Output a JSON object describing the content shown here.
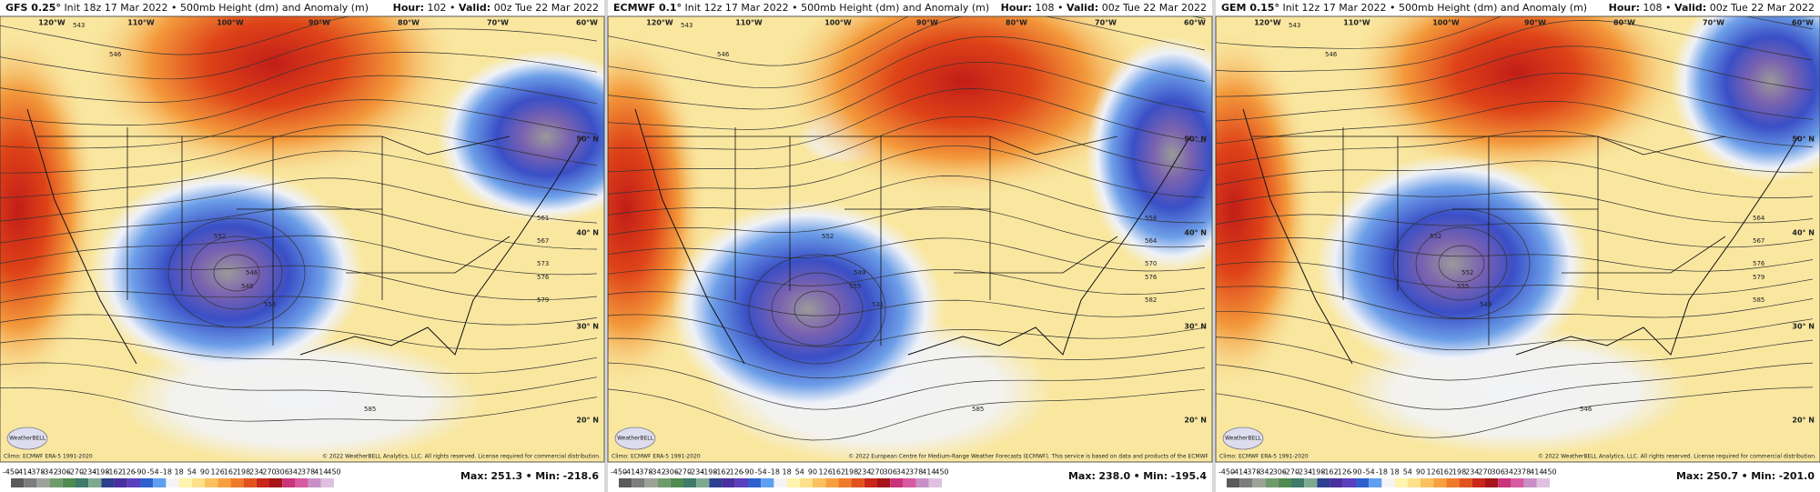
{
  "panels": [
    {
      "model": "GFS 0.25°",
      "subtitle": "Init 18z 17 Mar 2022 • 500mb Height (dm) and Anomaly (m)",
      "hour": "102",
      "valid": "00z Tue 22 Mar 2022",
      "max": "251.3",
      "min": "-218.6",
      "copyright": "© 2022 WeatherBELL Analytics, LLC. All rights reserved. License required for commercial distribution.",
      "contours": [
        543,
        546,
        552,
        561,
        567,
        573,
        576,
        579,
        585,
        546,
        549,
        555
      ]
    },
    {
      "model": "ECMWF 0.1°",
      "subtitle": "Init 12z 17 Mar 2022 • 500mb Height (dm) and Anomaly (m)",
      "hour": "108",
      "valid": "00z Tue 22 Mar 2022",
      "max": "238.0",
      "min": "-195.4",
      "copyright": "© 2022 European Centre for Medium-Range Weather Forecasts (ECMWF). This service is based on data and products of the ECMWF",
      "contours": [
        543,
        546,
        552,
        558,
        564,
        570,
        576,
        582,
        585,
        549,
        555,
        531
      ]
    },
    {
      "model": "GEM 0.15°",
      "subtitle": "Init 12z 17 Mar 2022 • 500mb Height (dm) and Anomaly (m)",
      "hour": "108",
      "valid": "00z Tue 22 Mar 2022",
      "max": "250.7",
      "min": "-201.0",
      "copyright": "© 2022 WeatherBELL Analytics, LLC. All rights reserved. License required for commercial distribution.",
      "contours": [
        543,
        546,
        552,
        564,
        567,
        576,
        579,
        585,
        546,
        552,
        555,
        549
      ]
    }
  ],
  "labels": {
    "hour": "Hour:",
    "valid": "Valid:",
    "separator": "•",
    "max": "Max:",
    "min": "Min:",
    "climo": "Climo: ECMWF ERA-5 1991-2020",
    "logo": "WeatherBELL"
  },
  "graticule": {
    "lon": [
      "120°W",
      "110°W",
      "100°W",
      "90°W",
      "80°W",
      "70°W",
      "60°W"
    ],
    "lat": [
      "50° N",
      "40° N",
      "30° N",
      "20° N"
    ]
  },
  "colorbar": {
    "ticks": [
      -450,
      -414,
      -378,
      -342,
      -306,
      -270,
      -234,
      -198,
      -162,
      -126,
      -90,
      -54,
      -18,
      18,
      54,
      90,
      126,
      162,
      198,
      234,
      270,
      306,
      342,
      378,
      414,
      450
    ],
    "colors": [
      "#5a5a5a",
      "#7d7d7d",
      "#9ea39a",
      "#6f9a6a",
      "#4f8a4f",
      "#3f7a6a",
      "#7fa890",
      "#2f3f8f",
      "#4a2f9f",
      "#5a3fbf",
      "#2f5fcf",
      "#5f9fef",
      "#f4f4f8",
      "#fff3b0",
      "#fde08a",
      "#fbc15e",
      "#f8a040",
      "#f07a2a",
      "#e2521c",
      "#c8281a",
      "#a8141a",
      "#c8347a",
      "#d85aa0",
      "#c890c8",
      "#e0c0e0"
    ]
  }
}
